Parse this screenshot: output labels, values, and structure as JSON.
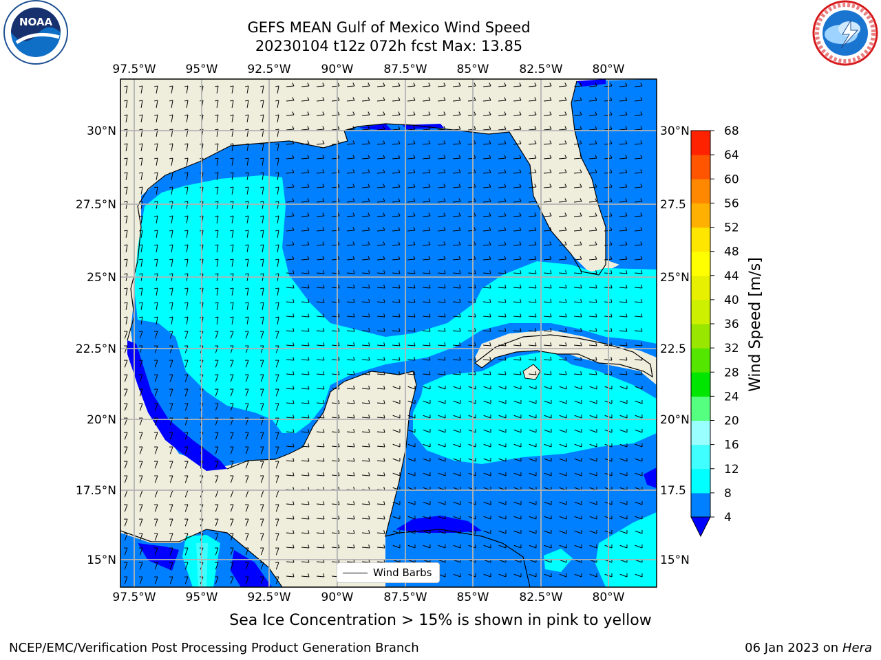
{
  "title": {
    "line1": "GEFS MEAN Gulf of Mexico Wind Speed",
    "line2": "20230104 t12z 072h fcst   Max: 13.85"
  },
  "logos": {
    "noaa": {
      "text": "NOAA",
      "ring_text": "NATIONAL OCEANIC AND ATMOSPHERIC ADMINISTRATION · U.S. DEPARTMENT OF COMMERCE"
    },
    "nws": {
      "ring_text": "NATIONAL WEATHER SERVICE"
    }
  },
  "map": {
    "lon_labels": [
      "97.5°W",
      "95°W",
      "92.5°W",
      "90°W",
      "87.5°W",
      "85°W",
      "82.5°W",
      "80°W"
    ],
    "lat_labels": [
      "30°N",
      "27.5°N",
      "25°N",
      "22.5°N",
      "20°N",
      "17.5°N",
      "15°N"
    ],
    "lat_labels_right": [
      "30°N",
      "27.5",
      "25°N",
      "22.5",
      "20°N",
      "17.5",
      "15°N"
    ],
    "legend_label": "Wind Barbs",
    "colors": {
      "land": "#efeddc",
      "ws_4_8": "#0080ff",
      "ws_under_4": "#0000ff",
      "ws_8_12": "#00ffff",
      "ws_12_16": "#40ffff",
      "grid": "#b3b3b3"
    }
  },
  "colorbar": {
    "label": "Wind Speed [m/s]",
    "ticks": [
      "4",
      "8",
      "12",
      "16",
      "20",
      "24",
      "28",
      "32",
      "36",
      "40",
      "44",
      "48",
      "52",
      "56",
      "60",
      "64",
      "68"
    ],
    "colors": [
      "#0080ff",
      "#00ffff",
      "#40ffff",
      "#99ffff",
      "#55ff80",
      "#00e600",
      "#55e600",
      "#99e600",
      "#ccf000",
      "#e6f000",
      "#ffff00",
      "#ffe600",
      "#ffb000",
      "#ff8800",
      "#ff5500",
      "#ff2200"
    ],
    "under_color": "#0000ff"
  },
  "caption": "Sea Ice Concentration > 15% is shown in pink to yellow",
  "footer": {
    "left": "NCEP/EMC/Verification Post Processing Product Generation Branch",
    "right_date": "06 Jan 2023 on",
    "right_host": "Hera"
  }
}
